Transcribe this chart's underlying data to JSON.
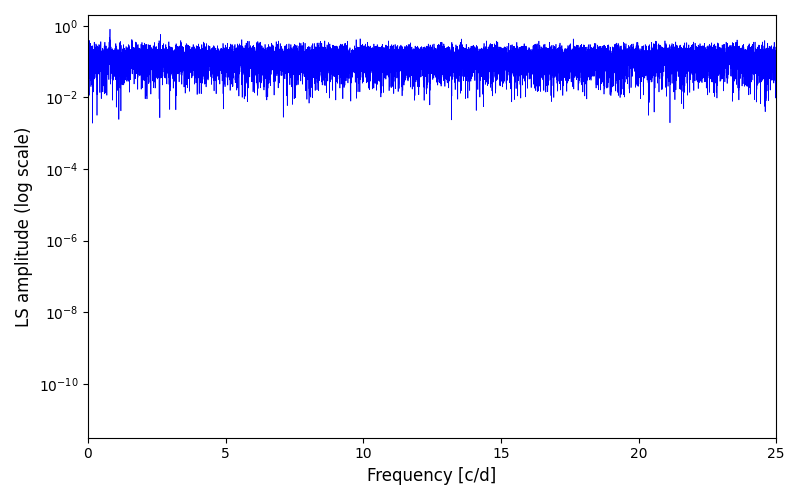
{
  "xlabel": "Frequency [c/d]",
  "ylabel": "LS amplitude (log scale)",
  "xlim": [
    0,
    25
  ],
  "ylim_log": [
    -11.5,
    0.3
  ],
  "line_color": "#0000ff",
  "line_width": 0.5,
  "background_color": "#ffffff",
  "figsize": [
    8.0,
    5.0
  ],
  "dpi": 100,
  "seed": 12345,
  "n_points": 15000,
  "freq_max": 25.0
}
